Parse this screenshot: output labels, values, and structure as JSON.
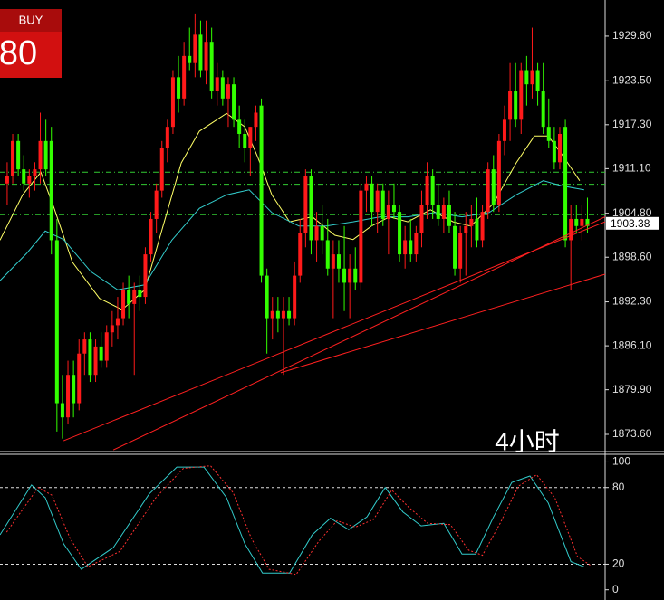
{
  "overlay": {
    "button": "BUY",
    "price": "80",
    "timeframe": "4小时"
  },
  "chart_data": [
    {
      "type": "candlestick",
      "xlim": [
        -1.3,
        108.2
      ],
      "ylim": [
        1871.3,
        1934.9
      ],
      "yticks": [
        {
          "value": 1929.8,
          "label": "1929.80"
        },
        {
          "value": 1923.5,
          "label": "1923.50"
        },
        {
          "value": 1917.3,
          "label": "1917.30"
        },
        {
          "value": 1911.1,
          "label": "1911.10"
        },
        {
          "value": 1904.8,
          "label": "1904.80"
        },
        {
          "value": 1898.6,
          "label": "1898.60"
        },
        {
          "value": 1892.3,
          "label": "1892.30"
        },
        {
          "value": 1886.1,
          "label": "1886.10"
        },
        {
          "value": 1879.9,
          "label": "1879.90"
        },
        {
          "value": 1873.6,
          "label": "1873.60"
        }
      ],
      "last_price": 1903.38,
      "up_color": "#ff1a1a",
      "down_color": "#33ff00",
      "ohlc": [
        [
          1909,
          1912,
          1906,
          1910
        ],
        [
          1910,
          1916,
          1909,
          1915
        ],
        [
          1915,
          1916,
          1910,
          1911
        ],
        [
          1911,
          1913,
          1908,
          1909
        ],
        [
          1909,
          1911,
          1907,
          1910
        ],
        [
          1910,
          1912,
          1908,
          1911
        ],
        [
          1911,
          1919,
          1909,
          1915
        ],
        [
          1915,
          1918,
          1910,
          1911
        ],
        [
          1915,
          1917,
          1899,
          1901
        ],
        [
          1901,
          1904,
          1874,
          1878
        ],
        [
          1878,
          1882,
          1873,
          1876
        ],
        [
          1876,
          1884,
          1875,
          1882
        ],
        [
          1882,
          1884,
          1876,
          1878
        ],
        [
          1878,
          1887,
          1877,
          1885
        ],
        [
          1885,
          1888,
          1882,
          1887
        ],
        [
          1887,
          1888,
          1881,
          1882
        ],
        [
          1882,
          1887,
          1881,
          1886
        ],
        [
          1886,
          1888,
          1883,
          1884
        ],
        [
          1884,
          1889,
          1883,
          1888
        ],
        [
          1888,
          1891,
          1886,
          1889
        ],
        [
          1889,
          1893,
          1887,
          1890
        ],
        [
          1890,
          1895,
          1889,
          1894
        ],
        [
          1894,
          1896,
          1890,
          1892
        ],
        [
          1892,
          1895,
          1882,
          1894
        ],
        [
          1894,
          1896,
          1891,
          1893
        ],
        [
          1893,
          1900,
          1892,
          1899
        ],
        [
          1899,
          1905,
          1898,
          1904
        ],
        [
          1904,
          1909,
          1902,
          1908
        ],
        [
          1908,
          1915,
          1907,
          1914
        ],
        [
          1914,
          1918,
          1912,
          1917
        ],
        [
          1917,
          1925,
          1916,
          1924
        ],
        [
          1924,
          1927,
          1919,
          1921
        ],
        [
          1921,
          1929,
          1920,
          1927
        ],
        [
          1927,
          1931,
          1925,
          1926
        ],
        [
          1926,
          1933,
          1924,
          1930
        ],
        [
          1930,
          1932,
          1924,
          1925
        ],
        [
          1925,
          1932,
          1923,
          1929
        ],
        [
          1929,
          1931,
          1921,
          1922
        ],
        [
          1922,
          1926,
          1920,
          1924
        ],
        [
          1924,
          1925,
          1920,
          1921
        ],
        [
          1921,
          1924,
          1917,
          1923
        ],
        [
          1923,
          1924,
          1917,
          1918
        ],
        [
          1918,
          1920,
          1914,
          1916
        ],
        [
          1916,
          1918,
          1912,
          1914
        ],
        [
          1914,
          1917,
          1910,
          1917
        ],
        [
          1917,
          1920,
          1915,
          1919
        ],
        [
          1920,
          1921,
          1895,
          1896
        ],
        [
          1896,
          1897,
          1885,
          1890
        ],
        [
          1890,
          1893,
          1887,
          1891
        ],
        [
          1891,
          1893,
          1888,
          1890
        ],
        [
          1890,
          1893,
          1882,
          1891
        ],
        [
          1891,
          1893,
          1889,
          1890
        ],
        [
          1890,
          1898,
          1889,
          1896
        ],
        [
          1896,
          1904,
          1895,
          1902
        ],
        [
          1902,
          1911,
          1900,
          1910
        ],
        [
          1910,
          1911,
          1899,
          1901
        ],
        [
          1901,
          1905,
          1898,
          1903
        ],
        [
          1903,
          1906,
          1899,
          1901
        ],
        [
          1901,
          1904,
          1896,
          1897
        ],
        [
          1897,
          1901,
          1890,
          1899
        ],
        [
          1899,
          1901,
          1895,
          1897
        ],
        [
          1897,
          1903,
          1891,
          1895
        ],
        [
          1895,
          1899,
          1890,
          1897
        ],
        [
          1897,
          1900,
          1894,
          1895
        ],
        [
          1895,
          1909,
          1894,
          1908
        ],
        [
          1908,
          1910,
          1905,
          1909
        ],
        [
          1909,
          1910,
          1903,
          1905
        ],
        [
          1905,
          1909,
          1902,
          1908
        ],
        [
          1908,
          1909,
          1903,
          1904
        ],
        [
          1904,
          1908,
          1899,
          1906
        ],
        [
          1906,
          1909,
          1904,
          1905
        ],
        [
          1905,
          1906,
          1898,
          1899
        ],
        [
          1899,
          1903,
          1897,
          1901
        ],
        [
          1901,
          1904,
          1898,
          1899
        ],
        [
          1899,
          1903,
          1898,
          1902
        ],
        [
          1902,
          1908,
          1900,
          1906
        ],
        [
          1906,
          1912,
          1904,
          1910
        ],
        [
          1910,
          1911,
          1904,
          1906
        ],
        [
          1906,
          1909,
          1903,
          1904
        ],
        [
          1904,
          1907,
          1902,
          1906
        ],
        [
          1906,
          1908,
          1902,
          1903
        ],
        [
          1903,
          1905,
          1896,
          1897
        ],
        [
          1897,
          1903,
          1895,
          1902
        ],
        [
          1902,
          1905,
          1896,
          1903
        ],
        [
          1903,
          1906,
          1900,
          1904
        ],
        [
          1904,
          1907,
          1900,
          1901
        ],
        [
          1901,
          1906,
          1900,
          1905
        ],
        [
          1905,
          1912,
          1904,
          1911
        ],
        [
          1911,
          1913,
          1905,
          1906
        ],
        [
          1906,
          1916,
          1905,
          1915
        ],
        [
          1915,
          1920,
          1913,
          1918
        ],
        [
          1918,
          1926,
          1915,
          1922
        ],
        [
          1922,
          1926,
          1917,
          1918
        ],
        [
          1918,
          1926,
          1916,
          1925
        ],
        [
          1925,
          1927,
          1920,
          1923
        ],
        [
          1923,
          1931,
          1921,
          1925
        ],
        [
          1925,
          1926,
          1920,
          1922
        ],
        [
          1922,
          1926,
          1916,
          1917
        ],
        [
          1917,
          1921,
          1914,
          1915
        ],
        [
          1915,
          1917,
          1911,
          1912
        ],
        [
          1912,
          1917,
          1911,
          1916
        ],
        [
          1917,
          1918,
          1900,
          1901
        ],
        [
          1901,
          1906,
          1894,
          1904
        ],
        [
          1904,
          1906,
          1902,
          1903
        ],
        [
          1903,
          1906,
          1901,
          1904
        ],
        [
          1904,
          1907,
          1902,
          1903
        ]
      ],
      "series": [
        {
          "color": "#ffff66",
          "x": [
            -1.3,
            2.8,
            6.1,
            8.5,
            11.8,
            16.7,
            20.8,
            24.9,
            28.2,
            31.5,
            34.8,
            39.7,
            43,
            45.4,
            47.9,
            51.1,
            55.2,
            59.3,
            62.6,
            65.9,
            69.2,
            72.5,
            76.6,
            80.7,
            83.9,
            88,
            92.1,
            95.4,
            97.9,
            100.3,
            103.6
          ],
          "values": [
            1901,
            1907.4,
            1910.6,
            1905.5,
            1897.9,
            1892.8,
            1891.2,
            1894,
            1903,
            1911.9,
            1916.4,
            1918.9,
            1917,
            1912.6,
            1907.4,
            1903.6,
            1904.3,
            1901.7,
            1901.1,
            1903,
            1904.3,
            1903.6,
            1905.3,
            1903.6,
            1903,
            1906.2,
            1911.9,
            1915.7,
            1915.7,
            1913.2,
            1909.4
          ]
        },
        {
          "color": "#33cccc",
          "x": [
            -1.3,
            3.6,
            6.9,
            10.2,
            15.1,
            20,
            24.9,
            29.8,
            34.8,
            39.7,
            43.8,
            47.9,
            52.8,
            57.7,
            62.6,
            67.5,
            72.5,
            77.4,
            82.3,
            87.2,
            92.1,
            97,
            100.3,
            104.4
          ],
          "values": [
            1895.3,
            1899.2,
            1902.3,
            1901.1,
            1896.6,
            1894,
            1894.7,
            1901,
            1905.5,
            1907.4,
            1908.1,
            1904.9,
            1903,
            1903,
            1903.6,
            1904.3,
            1904.3,
            1904.9,
            1904.3,
            1904.9,
            1907.4,
            1909.4,
            1908.7,
            1908.1
          ]
        }
      ],
      "levels": [
        1910.6,
        1908.9,
        1904.6
      ],
      "level_color": "#33cc33",
      "trendlines": [
        {
          "x": [
            10.2,
            108.2
          ],
          "values": [
            1872.7,
            1903.6
          ]
        },
        {
          "x": [
            19.2,
            108.2
          ],
          "values": [
            1871.4,
            1904.3
          ]
        },
        {
          "x": [
            49.5,
            108.2
          ],
          "values": [
            1882.3,
            1896.2
          ]
        }
      ],
      "trend_color": "#ff2020"
    },
    {
      "type": "line",
      "xlim": [
        -1.3,
        108.2
      ],
      "ylim": [
        -8,
        106
      ],
      "yticks": [
        100,
        80,
        20,
        0
      ],
      "levels": [
        80,
        20
      ],
      "series": [
        {
          "color": "#33cccc",
          "x": [
            -1.3,
            4.4,
            6.9,
            10.2,
            13.4,
            19.2,
            25.7,
            30.7,
            35.6,
            39.7,
            43,
            46.2,
            51.1,
            55.2,
            58.5,
            61.8,
            65.1,
            68.4,
            71.6,
            74.9,
            79,
            82.3,
            84.8,
            88,
            91.3,
            94.6,
            97.9,
            102,
            104.4
          ],
          "values": [
            43,
            82,
            72,
            36,
            16,
            33,
            75,
            96,
            96,
            72,
            36,
            13,
            13,
            43,
            56,
            47,
            57,
            80,
            61,
            50,
            52,
            28,
            28,
            57,
            84,
            89,
            68,
            22,
            18
          ]
        },
        {
          "color": "#ff3030",
          "dashed": true,
          "x": [
            -0.1,
            5.6,
            8.1,
            11.4,
            14.6,
            20.4,
            26.9,
            31.9,
            36.8,
            40.9,
            44.2,
            47.4,
            52.3,
            56.4,
            59.7,
            63,
            66.3,
            69.6,
            72.8,
            76.1,
            80.2,
            83.5,
            86,
            89.2,
            92.5,
            95.8,
            99.1,
            103.2,
            105.6
          ],
          "values": [
            45,
            80,
            74,
            40,
            18,
            30,
            72,
            95,
            97,
            76,
            40,
            16,
            12,
            38,
            54,
            49,
            55,
            78,
            64,
            52,
            51,
            31,
            27,
            52,
            81,
            90,
            72,
            26,
            19
          ]
        }
      ]
    }
  ]
}
